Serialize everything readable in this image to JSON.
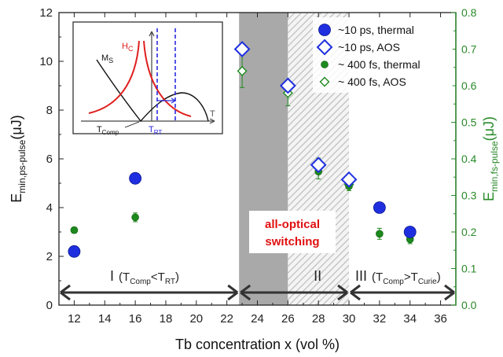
{
  "chart_data": {
    "type": "scatter",
    "xlabel": "Tb concentration x (vol %)",
    "ylabel": "E",
    "ylabel_sub": "min,ps-pulse",
    "ylabel_unit": "(μJ)",
    "y2label": "E",
    "y2label_sub": "min,fs-pulse",
    "y2label_unit": "(μJ)",
    "xlim": [
      11,
      37
    ],
    "ylim": [
      0,
      12
    ],
    "y2lim": [
      0,
      0.8
    ],
    "x_ticks": [
      12,
      14,
      16,
      18,
      20,
      22,
      24,
      26,
      28,
      30,
      32,
      34,
      36
    ],
    "y_ticks": [
      0,
      2,
      4,
      6,
      8,
      10,
      12
    ],
    "y2_ticks": [
      "0.0",
      "0.1",
      "0.2",
      "0.3",
      "0.4",
      "0.5",
      "0.6",
      "0.7",
      "0.8"
    ],
    "series": [
      {
        "name": "~10 ps, thermal",
        "marker": "filled-circle-large",
        "color": "#1f2fe0",
        "axis": "left",
        "x": [
          12,
          16,
          32,
          34
        ],
        "y": [
          2.2,
          5.2,
          4.0,
          3.0
        ]
      },
      {
        "name": "~10 ps, AOS",
        "marker": "open-diamond-large",
        "color": "#1f2fe0",
        "axis": "left",
        "x": [
          23,
          26,
          28,
          30
        ],
        "y": [
          10.5,
          9.0,
          5.75,
          5.15
        ]
      },
      {
        "name": "~ 400 fs, thermal",
        "marker": "filled-circle-small",
        "color": "#1c8a1c",
        "axis": "right",
        "x": [
          12,
          16,
          28,
          30,
          32,
          34
        ],
        "y": [
          0.205,
          0.24,
          0.365,
          0.325,
          0.195,
          0.18
        ],
        "err": [
          0.008,
          0.012,
          0.02,
          0.012,
          0.015,
          0.012
        ]
      },
      {
        "name": "~ 400 fs, AOS",
        "marker": "open-diamond-small",
        "color": "#1c8a1c",
        "axis": "right",
        "x": [
          23,
          26,
          28,
          30
        ],
        "y": [
          0.64,
          0.58,
          0.38,
          0.33
        ],
        "err": [
          0.045,
          0.035,
          0.022,
          0.01
        ]
      }
    ],
    "regions": [
      {
        "label": "I",
        "sub_open": "(T",
        "sub1": "Comp",
        "sub_mid": "<T",
        "sub2": "RT",
        "sub_close": ")",
        "x_from": 11,
        "x_to": 22.8
      },
      {
        "label": "II",
        "x_from": 22.8,
        "x_to": 30
      },
      {
        "label": "III",
        "sub_open": "(T",
        "sub1": "Comp",
        "sub_mid": ">T",
        "sub2": "Curie",
        "sub_close": ")",
        "x_from": 30,
        "x_to": 37
      }
    ],
    "shaded": {
      "solid_gray": [
        22.8,
        26
      ],
      "hatched": [
        26,
        30
      ]
    },
    "annotation": {
      "line1": "all-optical",
      "line2": "switching"
    },
    "legend_position": "top-right",
    "inset": {
      "hc_label": "H",
      "hc_sub": "C",
      "ms_label": "M",
      "ms_sub": "S",
      "t_label": "T",
      "tcomp_label": "T",
      "tcomp_sub": "Comp",
      "trt_label": "T",
      "trt_sub": "RT"
    },
    "colors": {
      "ps": "#1f2fe0",
      "fs": "#1c8a1c",
      "right_axis": "#2a8a2a",
      "aos_text": "#e01010",
      "hc_curve": "#e02020"
    }
  }
}
